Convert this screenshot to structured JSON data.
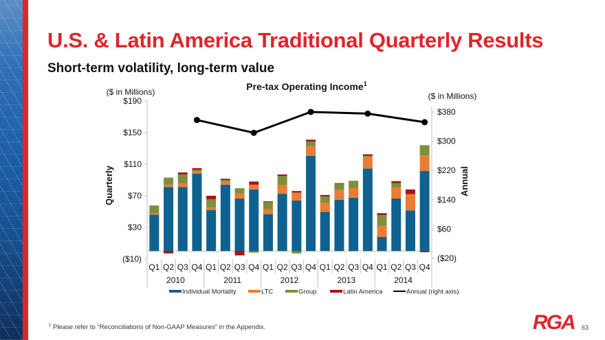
{
  "slide": {
    "title": "U.S. & Latin America Traditional Quarterly Results",
    "subtitle": "Short-term volatility, long-term value",
    "footnote_marker": "1",
    "footnote": "Please refer to “Reconciliations of Non-GAAP Measures” in the Appendix.",
    "logo": "RGA",
    "page_number": "63",
    "colors": {
      "brand_red": "#e1242b"
    }
  },
  "chart_data": {
    "type": "bar",
    "stacked": true,
    "title": "Pre-tax Operating Income",
    "title_superscript": "1",
    "left_unit_label": "($ in Millions)",
    "right_unit_label": "($ in Millions)",
    "ylabel": "Quarterly",
    "y2label": "Annual",
    "ylim": [
      -10,
      190
    ],
    "yticks": [
      -10,
      30,
      70,
      110,
      150,
      190
    ],
    "ytick_labels": [
      "($10)",
      "$30",
      "$70",
      "$110",
      "$150",
      "$190"
    ],
    "y2lim": [
      -20,
      380
    ],
    "y2ticks": [
      -20,
      60,
      140,
      220,
      300,
      380
    ],
    "y2tick_labels": [
      "($20)",
      "$60",
      "$140",
      "$220",
      "$300",
      "$380"
    ],
    "grid": false,
    "legend_position": "bottom",
    "quarters": [
      "Q1",
      "Q2",
      "Q3",
      "Q4",
      "Q1",
      "Q2",
      "Q3",
      "Q4",
      "Q1",
      "Q2",
      "Q3",
      "Q4",
      "Q1",
      "Q2",
      "Q3",
      "Q4",
      "Q1",
      "Q2",
      "Q3",
      "Q4"
    ],
    "years": [
      "2010",
      "2011",
      "2012",
      "2013",
      "2014"
    ],
    "series": [
      {
        "name": "Individual Mortality",
        "color": "#0f6190",
        "values": [
          46,
          81,
          81,
          98,
          52,
          84,
          66.5,
          78,
          46.5,
          72.5,
          64,
          120.5,
          49.5,
          65,
          67.5,
          104.5,
          18,
          66.5,
          51.5,
          101.5
        ]
      },
      {
        "name": "LTC",
        "color": "#ec7b34",
        "values": [
          1.5,
          3,
          4.5,
          3,
          3,
          4,
          6.5,
          6,
          6.5,
          11,
          10,
          12.5,
          11.5,
          12.5,
          12.5,
          15,
          14,
          14,
          20.5,
          19.5
        ]
      },
      {
        "name": "Group",
        "color": "#7d8f3b",
        "values": [
          9.5,
          9,
          11.5,
          2,
          10.5,
          2,
          6.5,
          -2,
          9,
          11.5,
          -3,
          5.5,
          8,
          7.5,
          9,
          1,
          13.5,
          5.5,
          0,
          13
        ]
      },
      {
        "name": "Latin America",
        "color": "#a3161b",
        "values": [
          0.5,
          -3,
          2.5,
          2,
          4.5,
          1.5,
          -5.5,
          4,
          1,
          2,
          2,
          2.5,
          2,
          1,
          0,
          2,
          2.5,
          2.5,
          6,
          -1.5
        ]
      }
    ],
    "line_series": {
      "name": "Annual (right axis)",
      "color": "#000000",
      "axis": "right",
      "x_quarter_index": [
        3,
        7,
        11,
        15,
        19
      ],
      "values": [
        358,
        323,
        380,
        375.5,
        352
      ]
    },
    "legend": [
      "Individual Mortality",
      "LTC",
      "Group",
      "Latin America",
      "Annual (right axis)"
    ]
  }
}
